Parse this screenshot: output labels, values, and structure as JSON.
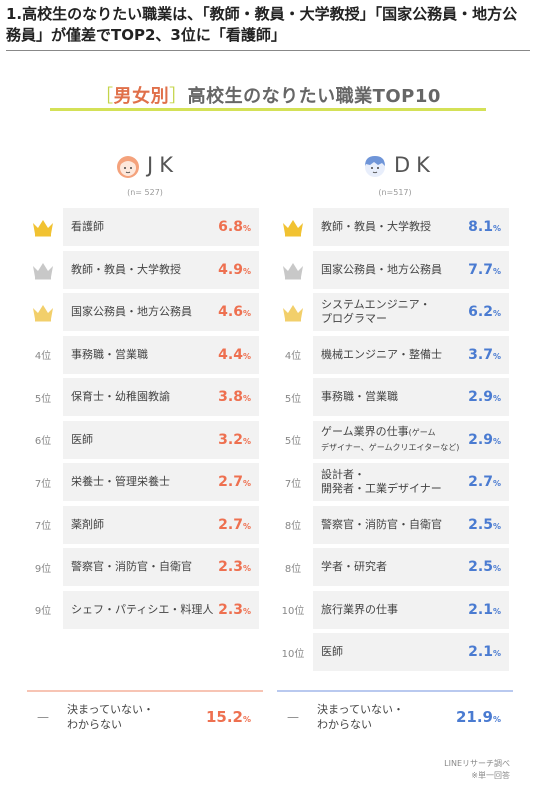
{
  "headline": "1.高校生のなりたい職業は、「教師・教員・大学教授」「国家公務員・地方公務員」が僅差でTOP2、3位に「看護師」",
  "chart_title": {
    "open": "［",
    "segment": "男女別",
    "close": "］",
    "main": "高校生のなりたい職業TOP10"
  },
  "colors": {
    "jk_value": "#ee7050",
    "dk_value": "#4a7bd1",
    "title_rule": "#d4e157",
    "gold": "#f1c232",
    "silver": "#c8c8c8",
    "bronze": "#f2cf6b"
  },
  "chart_data": [
    {
      "type": "table",
      "group": "JK",
      "n_label": "(n= 527)",
      "unit": "%",
      "rows": [
        {
          "rank_label": "",
          "medal": "gold",
          "name": "看護師",
          "value": "6.8"
        },
        {
          "rank_label": "",
          "medal": "silver",
          "name": "教師・教員・大学教授",
          "value": "4.9"
        },
        {
          "rank_label": "",
          "medal": "bronze",
          "name": "国家公務員・地方公務員",
          "value": "4.6"
        },
        {
          "rank_label": "4位",
          "name": "事務職・営業職",
          "value": "4.4"
        },
        {
          "rank_label": "5位",
          "name": "保育士・幼稚園教諭",
          "value": "3.8"
        },
        {
          "rank_label": "6位",
          "name": "医師",
          "value": "3.2"
        },
        {
          "rank_label": "7位",
          "name": "栄養士・管理栄養士",
          "value": "2.7"
        },
        {
          "rank_label": "7位",
          "name": "薬剤師",
          "value": "2.7"
        },
        {
          "rank_label": "9位",
          "name": "警察官・消防官・自衛官",
          "value": "2.3"
        },
        {
          "rank_label": "9位",
          "name": "シェフ・パティシエ・料理人",
          "value": "2.3"
        }
      ],
      "undecided": {
        "dash": "—",
        "line1": "決まっていない・",
        "line2": "わからない",
        "value": "15.2"
      }
    },
    {
      "type": "table",
      "group": "DK",
      "n_label": "(n=517)",
      "unit": "%",
      "rows": [
        {
          "rank_label": "",
          "medal": "gold",
          "name": "教師・教員・大学教授",
          "value": "8.1"
        },
        {
          "rank_label": "",
          "medal": "silver",
          "name": "国家公務員・地方公務員",
          "value": "7.7"
        },
        {
          "rank_label": "",
          "medal": "bronze",
          "name": "システムエンジニア・",
          "name2": "プログラマー",
          "value": "6.2"
        },
        {
          "rank_label": "4位",
          "name": "機械エンジニア・整備士",
          "value": "3.7"
        },
        {
          "rank_label": "5位",
          "name": "事務職・営業職",
          "value": "2.9"
        },
        {
          "rank_label": "5位",
          "name": "ゲーム業界の仕事",
          "name_small": "(ゲーム",
          "name2_small": "デザイナー、ゲームクリエイターなど)",
          "value": "2.9"
        },
        {
          "rank_label": "7位",
          "name": "設計者・",
          "name2": "開発者・工業デザイナー",
          "value": "2.7"
        },
        {
          "rank_label": "8位",
          "name": "警察官・消防官・自衛官",
          "value": "2.5"
        },
        {
          "rank_label": "8位",
          "name": "学者・研究者",
          "value": "2.5"
        },
        {
          "rank_label": "10位",
          "name": "旅行業界の仕事",
          "value": "2.1"
        },
        {
          "rank_label": "10位",
          "name": "医師",
          "value": "2.1"
        }
      ],
      "undecided": {
        "dash": "—",
        "line1": "決まっていない・",
        "line2": "わからない",
        "value": "21.9"
      }
    }
  ],
  "source": {
    "line1": "LINEリサーチ調べ",
    "line2": "※単一回答"
  }
}
